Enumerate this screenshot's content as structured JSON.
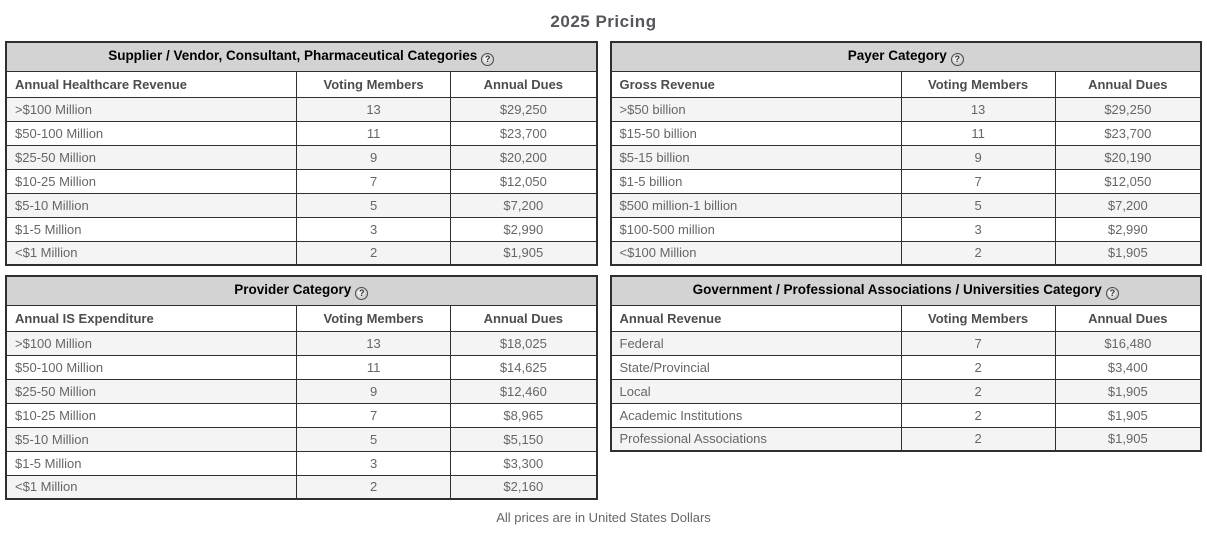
{
  "page": {
    "title": "2025 Pricing",
    "footer_note": "All prices are in United States Dollars"
  },
  "icons": {
    "help_glyph": "?"
  },
  "colors": {
    "header_bg": "#d3d3d3",
    "row_alt_bg": "#f4f4f4",
    "border": "#2f2f2f",
    "title_text": "#53565a",
    "cell_text": "#666666",
    "header_text": "#000000",
    "column_header_text": "#4d4d4d"
  },
  "tables": [
    {
      "title": "Supplier / Vendor, Consultant, Pharmaceutical Categories",
      "columns": [
        "Annual Healthcare Revenue",
        "Voting Members",
        "Annual Dues"
      ],
      "rows": [
        [
          ">$100 Million",
          "13",
          "$29,250"
        ],
        [
          "$50-100 Million",
          "11",
          "$23,700"
        ],
        [
          "$25-50 Million",
          "9",
          "$20,200"
        ],
        [
          "$10-25 Million",
          "7",
          "$12,050"
        ],
        [
          "$5-10 Million",
          "5",
          "$7,200"
        ],
        [
          "$1-5 Million",
          "3",
          "$2,990"
        ],
        [
          "<$1 Million",
          "2",
          "$1,905"
        ]
      ]
    },
    {
      "title": "Payer Category",
      "columns": [
        "Gross Revenue",
        "Voting Members",
        "Annual Dues"
      ],
      "rows": [
        [
          ">$50 billion",
          "13",
          "$29,250"
        ],
        [
          "$15-50 billion",
          "11",
          "$23,700"
        ],
        [
          "$5-15 billion",
          "9",
          "$20,190"
        ],
        [
          "$1-5 billion",
          "7",
          "$12,050"
        ],
        [
          "$500 million-1 billion",
          "5",
          "$7,200"
        ],
        [
          "$100-500 million",
          "3",
          "$2,990"
        ],
        [
          "<$100 Million",
          "2",
          "$1,905"
        ]
      ]
    },
    {
      "title": "Provider Category",
      "columns": [
        "Annual IS Expenditure",
        "Voting Members",
        "Annual Dues"
      ],
      "rows": [
        [
          ">$100 Million",
          "13",
          "$18,025"
        ],
        [
          "$50-100 Million",
          "11",
          "$14,625"
        ],
        [
          "$25-50 Million",
          "9",
          "$12,460"
        ],
        [
          "$10-25 Million",
          "7",
          "$8,965"
        ],
        [
          "$5-10 Million",
          "5",
          "$5,150"
        ],
        [
          "$1-5 Million",
          "3",
          "$3,300"
        ],
        [
          "<$1 Million",
          "2",
          "$2,160"
        ]
      ]
    },
    {
      "title": "Government / Professional Associations / Universities Category",
      "columns": [
        "Annual Revenue",
        "Voting Members",
        "Annual Dues"
      ],
      "rows": [
        [
          "Federal",
          "7",
          "$16,480"
        ],
        [
          "State/Provincial",
          "2",
          "$3,400"
        ],
        [
          "Local",
          "2",
          "$1,905"
        ],
        [
          "Academic Institutions",
          "2",
          "$1,905"
        ],
        [
          "Professional Associations",
          "2",
          "$1,905"
        ]
      ]
    }
  ]
}
